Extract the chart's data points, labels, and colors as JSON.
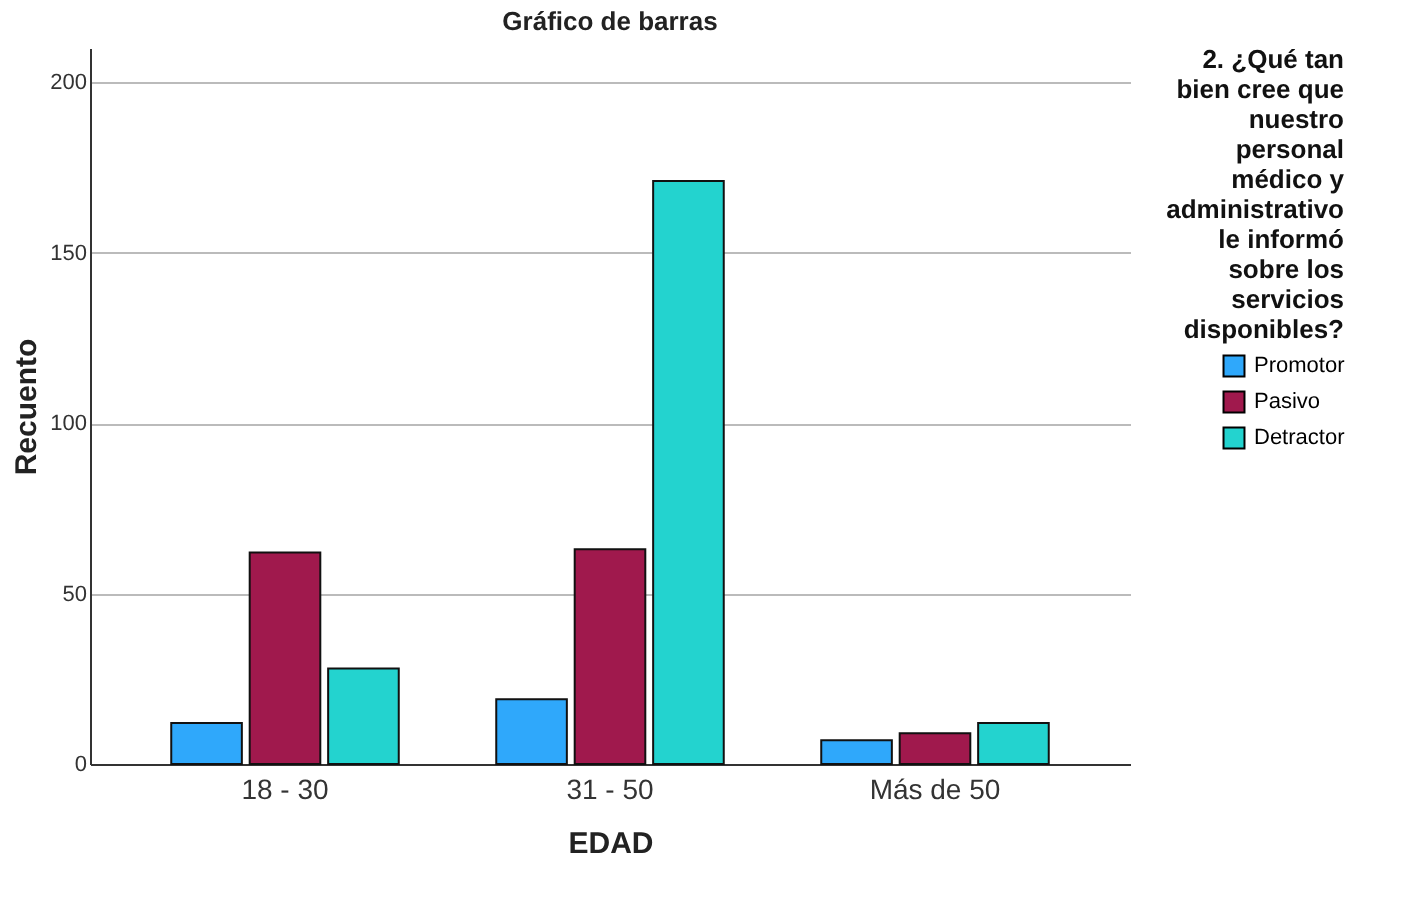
{
  "chart_data": {
    "type": "bar",
    "title": "Gráfico de barras",
    "xlabel": "EDAD",
    "ylabel": "Recuento",
    "legend_title": "2. ¿Qué tan bien cree que nuestro personal médico y administrativo le informó sobre los servicios disponibles?",
    "categories": [
      "18 - 30",
      "31 - 50",
      "Más de 50"
    ],
    "series": [
      {
        "name": "Promotor",
        "color": "#2fa8fb",
        "values": [
          12,
          19,
          7
        ]
      },
      {
        "name": "Pasivo",
        "color": "#a0194d",
        "values": [
          62,
          63,
          9
        ]
      },
      {
        "name": "Detractor",
        "color": "#23d3cf",
        "values": [
          28,
          171,
          12
        ]
      }
    ],
    "ylim": [
      0,
      210
    ],
    "yticks": [
      0,
      50,
      100,
      150,
      200
    ],
    "grid": "y",
    "legend": "right"
  }
}
